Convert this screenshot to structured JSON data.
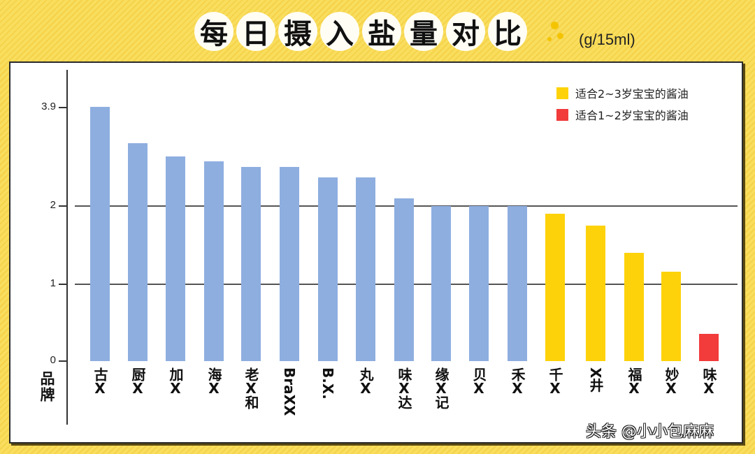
{
  "title": {
    "chars": [
      "每",
      "日",
      "摄",
      "入",
      "盐",
      "量",
      "对",
      "比"
    ],
    "unit": "(g/15ml)"
  },
  "colors": {
    "blue": "#8eaee0",
    "yellow": "#fdd20a",
    "red": "#f23b3b",
    "background": "#f9de5e"
  },
  "legend": [
    {
      "label": "适合2~3岁宝宝的酱油",
      "color": "#fdd20a"
    },
    {
      "label": "适合1~2岁宝宝的酱油",
      "color": "#f23b3b"
    }
  ],
  "axis": {
    "x_title": "品牌",
    "y_ticks": [
      "3.9",
      "2",
      "1",
      "0"
    ]
  },
  "watermark": "头条 @小小包麻麻",
  "chart_data": {
    "type": "bar",
    "title": "每日摄入盐量对比",
    "subtitle": "(g/15ml)",
    "xlabel": "品牌",
    "ylabel": "",
    "categories": [
      "古X",
      "厨X",
      "加X",
      "海X",
      "老X和",
      "BraXX",
      "B.X.",
      "丸X",
      "味X达",
      "缘X记",
      "贝X",
      "禾X",
      "千X",
      "X井",
      "福X",
      "妙X",
      "味X"
    ],
    "values": [
      3.9,
      3.2,
      2.95,
      2.85,
      2.75,
      2.75,
      2.55,
      2.55,
      2.15,
      2.0,
      2.0,
      2.0,
      1.9,
      1.75,
      1.4,
      1.15,
      0.35
    ],
    "bar_colors": [
      "blue",
      "blue",
      "blue",
      "blue",
      "blue",
      "blue",
      "blue",
      "blue",
      "blue",
      "blue",
      "blue",
      "blue",
      "yellow",
      "yellow",
      "yellow",
      "yellow",
      "red"
    ],
    "legend": [
      "适合2~3岁宝宝的酱油",
      "适合1~2岁宝宝的酱油"
    ],
    "y_ticks": [
      0,
      1,
      2,
      3.9
    ],
    "grid_lines_at": [
      1,
      2
    ],
    "legend_position": "top-right"
  }
}
